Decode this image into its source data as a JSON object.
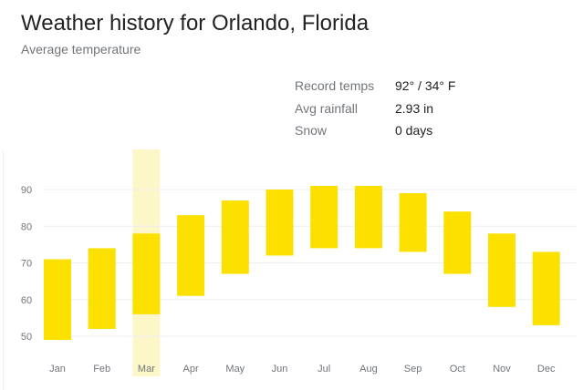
{
  "title": "Weather history for Orlando, Florida",
  "subtitle": "Average temperature",
  "stats": [
    {
      "label": "Record temps",
      "value": "92° / 34° F"
    },
    {
      "label": "Avg rainfall",
      "value": "2.93 in"
    },
    {
      "label": "Snow",
      "value": "0 days"
    }
  ],
  "chart_data": {
    "type": "bar",
    "subtype": "floating-range",
    "categories": [
      "Jan",
      "Feb",
      "Mar",
      "Apr",
      "May",
      "Jun",
      "Jul",
      "Aug",
      "Sep",
      "Oct",
      "Nov",
      "Dec"
    ],
    "low": [
      49,
      52,
      56,
      61,
      67,
      72,
      74,
      74,
      73,
      67,
      58,
      53
    ],
    "high": [
      71,
      74,
      78,
      83,
      87,
      90,
      91,
      91,
      89,
      84,
      78,
      73
    ],
    "yticks": [
      50,
      60,
      70,
      80,
      90
    ],
    "highlighted": "Mar",
    "bar_color": "#fbe000",
    "highlight_color": "#fdf6c8"
  }
}
